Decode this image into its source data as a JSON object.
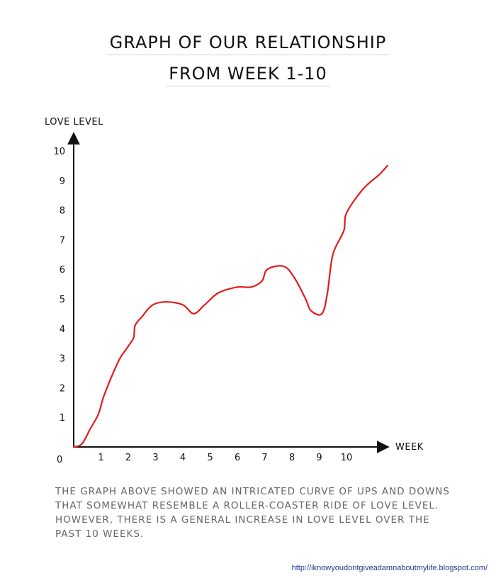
{
  "chart_data": {
    "type": "line",
    "title": "GRAPH OF  OUR RELATIONSHIP",
    "subtitle": "FROM WEEK 1-10",
    "xlabel": "WEEK",
    "ylabel": "LOVE LEVEL",
    "xlim": [
      0,
      11
    ],
    "ylim": [
      0,
      10
    ],
    "origin_label": "0",
    "x_ticks": [
      "1",
      "2",
      "3",
      "4",
      "5",
      "6",
      "7",
      "8",
      "9",
      "10"
    ],
    "y_ticks": [
      "1",
      "2",
      "3",
      "4",
      "5",
      "6",
      "7",
      "8",
      "9",
      "10"
    ],
    "grid": false,
    "series": [
      {
        "color": "#e31b1b",
        "points": [
          [
            0.0,
            0.0
          ],
          [
            0.3,
            0.1
          ],
          [
            0.6,
            0.6
          ],
          [
            0.9,
            1.1
          ],
          [
            1.1,
            1.7
          ],
          [
            1.4,
            2.4
          ],
          [
            1.7,
            3.0
          ],
          [
            2.0,
            3.4
          ],
          [
            2.2,
            3.7
          ],
          [
            2.25,
            4.1
          ],
          [
            2.5,
            4.4
          ],
          [
            2.9,
            4.8
          ],
          [
            3.4,
            4.9
          ],
          [
            4.0,
            4.8
          ],
          [
            4.4,
            4.5
          ],
          [
            4.8,
            4.8
          ],
          [
            5.3,
            5.2
          ],
          [
            6.0,
            5.4
          ],
          [
            6.5,
            5.4
          ],
          [
            6.9,
            5.6
          ],
          [
            7.1,
            6.0
          ],
          [
            7.7,
            6.1
          ],
          [
            8.1,
            5.7
          ],
          [
            8.5,
            5.0
          ],
          [
            8.7,
            4.6
          ],
          [
            9.1,
            4.5
          ],
          [
            9.3,
            5.2
          ],
          [
            9.5,
            6.5
          ],
          [
            9.9,
            7.3
          ],
          [
            10.0,
            7.9
          ],
          [
            10.6,
            8.7
          ],
          [
            11.2,
            9.2
          ],
          [
            11.5,
            9.5
          ]
        ]
      }
    ]
  },
  "caption": "The graph above showed an intricated curve of ups and downs that somewhat resemble a roller-coaster ride of love level. However, there is a general increase in love level over the past 10 weeks.",
  "source_url": "http://iknowyoudontgiveadamnaboutmylife.blogspot.com/"
}
